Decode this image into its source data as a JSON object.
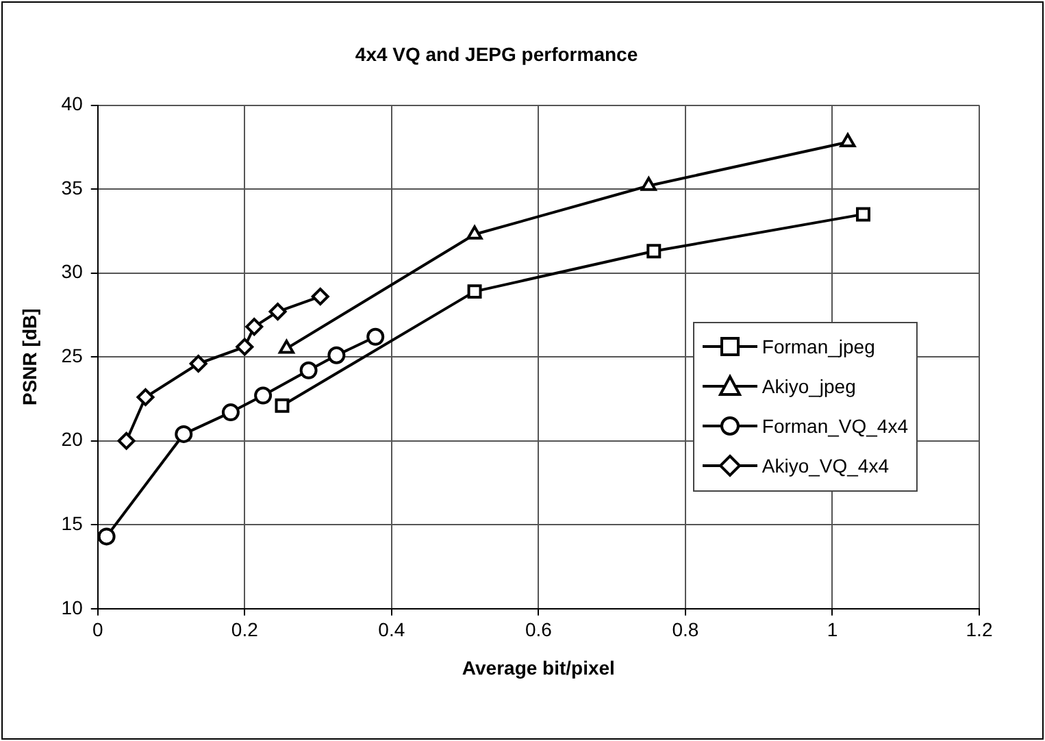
{
  "chart_data": {
    "type": "line",
    "title": "4x4 VQ and JEPG performance",
    "xlabel": "Average bit/pixel",
    "ylabel": "PSNR [dB]",
    "xlim": [
      0,
      1.2
    ],
    "xticks": [
      0,
      0.2,
      0.4,
      0.6,
      0.8,
      1,
      1.2
    ],
    "ylim": [
      10,
      40
    ],
    "yticks": [
      10,
      15,
      20,
      25,
      30,
      35,
      40
    ],
    "grid": true,
    "legend": "right",
    "line_style": "solid",
    "series": [
      {
        "name": "Forman_jpeg",
        "color": "#000000",
        "marker": "square",
        "x": [
          0.251,
          0.513,
          0.757,
          1.042
        ],
        "values": [
          22.1,
          28.9,
          31.3,
          33.5
        ]
      },
      {
        "name": "Akiyo_jpeg",
        "color": "#000000",
        "marker": "triangle",
        "x": [
          0.257,
          0.513,
          0.75,
          1.021
        ],
        "values": [
          25.5,
          32.3,
          35.2,
          37.8
        ]
      },
      {
        "name": "Forman_VQ_4x4",
        "color": "#000000",
        "marker": "circle",
        "x": [
          0.012,
          0.117,
          0.181,
          0.225,
          0.287,
          0.325,
          0.378
        ],
        "values": [
          14.3,
          20.4,
          21.7,
          22.7,
          24.2,
          25.1,
          26.2
        ]
      },
      {
        "name": "Akiyo_VQ_4x4",
        "color": "#000000",
        "marker": "diamond",
        "x": [
          0.039,
          0.065,
          0.137,
          0.2,
          0.213,
          0.245,
          0.303
        ],
        "values": [
          20,
          22.6,
          24.6,
          25.6,
          26.8,
          27.7,
          28.6
        ]
      }
    ]
  }
}
